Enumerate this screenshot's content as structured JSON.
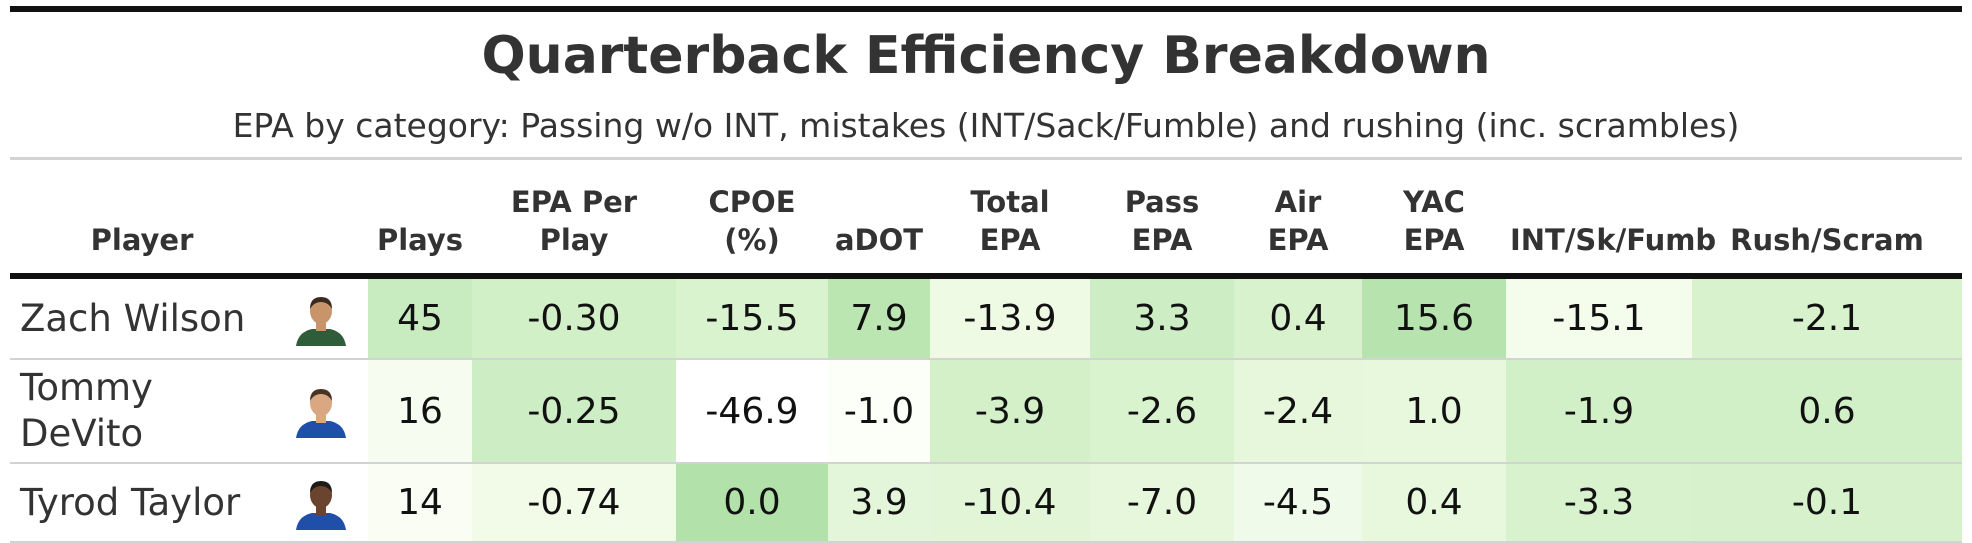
{
  "title": "Quarterback Efficiency Breakdown",
  "subtitle": "EPA by category: Passing w/o INT, mistakes (INT/Sack/Fumble) and rushing (inc. scrambles)",
  "columns": {
    "player": "Player",
    "plays": "Plays",
    "epa_per_play": [
      "EPA Per",
      "Play"
    ],
    "cpoe": [
      "CPOE",
      "(%)"
    ],
    "adot": "aDOT",
    "total_epa": [
      "Total",
      "EPA"
    ],
    "pass_epa": [
      "Pass",
      "EPA"
    ],
    "air_epa": [
      "Air",
      "EPA"
    ],
    "yac_epa": [
      "YAC",
      "EPA"
    ],
    "int_sk_fumb": "INT/Sk/Fumb",
    "rush_scram": "Rush/Scram"
  },
  "rows": [
    {
      "player": "Zach Wilson",
      "headshot": {
        "icon": "player-headshot-icon",
        "jersey_color": "#2f5d3a",
        "skin_color": "#c8946a",
        "hair_color": "#3b2a1e"
      },
      "plays": "45",
      "epa_per_play": "-0.30",
      "cpoe": "-15.5",
      "adot": "7.9",
      "total_epa": "-13.9",
      "pass_epa": "3.3",
      "air_epa": "0.4",
      "yac_epa": "15.6",
      "int_sk_fumb": "-15.1",
      "rush_scram": "-2.1",
      "colors": {
        "plays": "#c8ebc0",
        "epa_per_play": "#d2f0c8",
        "cpoe": "#daf3cf",
        "adot": "#bbe6b2",
        "total_epa": "#eefae4",
        "pass_epa": "#cdeec4",
        "air_epa": "#d8f2cd",
        "yac_epa": "#b7e4ae",
        "int_sk_fumb": "#f4fcec",
        "rush_scram": "#d8f2cd"
      }
    },
    {
      "player": "Tommy DeVito",
      "headshot": {
        "icon": "player-headshot-icon",
        "jersey_color": "#1f4fa8",
        "skin_color": "#d9a882",
        "hair_color": "#4a3323"
      },
      "plays": "16",
      "epa_per_play": "-0.25",
      "cpoe": "-46.9",
      "adot": "-1.0",
      "total_epa": "-3.9",
      "pass_epa": "-2.6",
      "air_epa": "-2.4",
      "yac_epa": "1.0",
      "int_sk_fumb": "-1.9",
      "rush_scram": "0.6",
      "colors": {
        "plays": "#f6fcef",
        "epa_per_play": "#cdeec4",
        "cpoe": "#ffffff",
        "adot": "#fcfef8",
        "total_epa": "#d4f0c9",
        "pass_epa": "#daf3cf",
        "air_epa": "#e6f7db",
        "yac_epa": "#e8f8dc",
        "int_sk_fumb": "#d2f0c8",
        "rush_scram": "#d2f0c8"
      }
    },
    {
      "player": "Tyrod Taylor",
      "headshot": {
        "icon": "player-headshot-icon",
        "jersey_color": "#1f4fa8",
        "skin_color": "#6b4430",
        "hair_color": "#1e1a18"
      },
      "plays": "14",
      "epa_per_play": "-0.74",
      "cpoe": "0.0",
      "adot": "3.9",
      "total_epa": "-10.4",
      "pass_epa": "-7.0",
      "air_epa": "-4.5",
      "yac_epa": "0.4",
      "int_sk_fumb": "-3.3",
      "rush_scram": "-0.1",
      "colors": {
        "plays": "#f9fdf3",
        "epa_per_play": "#f2fbe8",
        "cpoe": "#b2e2aa",
        "adot": "#e4f6d9",
        "total_epa": "#e2f5d7",
        "pass_epa": "#e6f7db",
        "air_epa": "#f0faea",
        "yac_epa": "#e8f8dc",
        "int_sk_fumb": "#d8f2cd",
        "rush_scram": "#d6f1cc"
      }
    }
  ]
}
